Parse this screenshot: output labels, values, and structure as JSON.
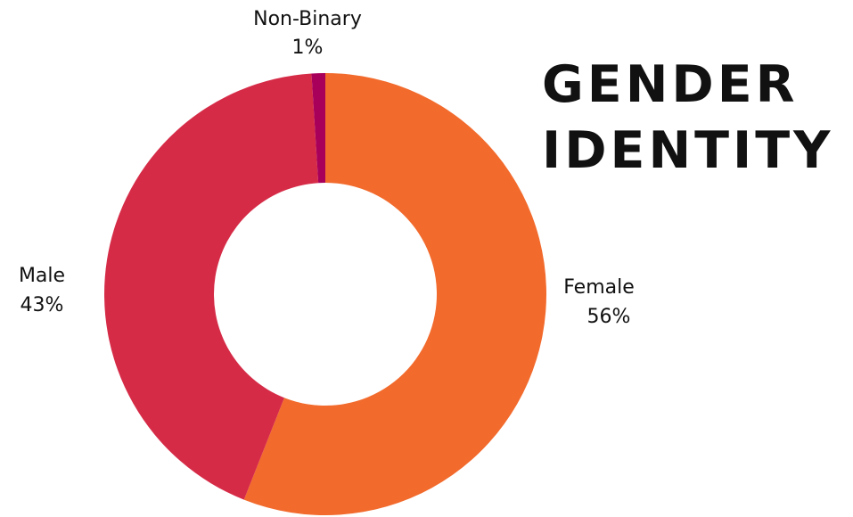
{
  "chart_data": {
    "type": "pie",
    "title": "GENDER IDENTITY",
    "categories": [
      "Female",
      "Male",
      "Non-Binary"
    ],
    "values": [
      56,
      43,
      1
    ],
    "value_labels": [
      "56%",
      "43%",
      "1%"
    ],
    "colors": [
      "#f26a2c",
      "#d62b47",
      "#a8005a"
    ]
  }
}
